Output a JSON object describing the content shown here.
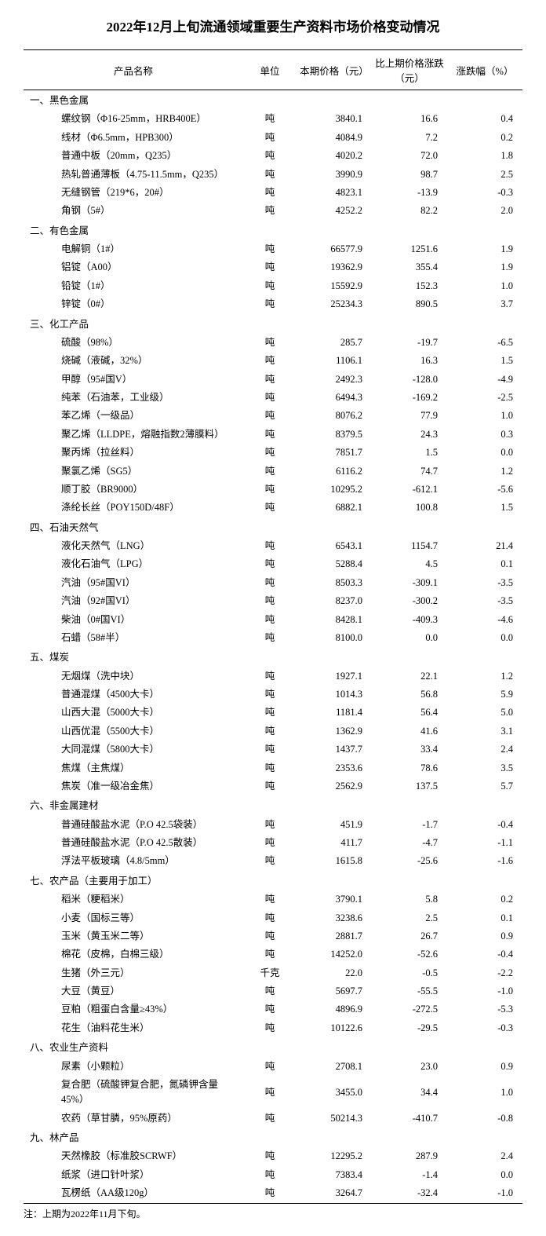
{
  "title": "2022年12月上旬流通领域重要生产资料市场价格变动情况",
  "headers": {
    "name": "产品名称",
    "unit": "单位",
    "price": "本期价格（元）",
    "change": "比上期价格涨跌（元）",
    "pct": "涨跌幅（%）"
  },
  "categories": [
    {
      "label": "一、黑色金属",
      "rows": [
        {
          "name": "螺纹钢（Φ16-25mm，HRB400E）",
          "unit": "吨",
          "price": "3840.1",
          "change": "16.6",
          "pct": "0.4"
        },
        {
          "name": "线材（Φ6.5mm，HPB300）",
          "unit": "吨",
          "price": "4084.9",
          "change": "7.2",
          "pct": "0.2"
        },
        {
          "name": "普通中板（20mm，Q235）",
          "unit": "吨",
          "price": "4020.2",
          "change": "72.0",
          "pct": "1.8"
        },
        {
          "name": "热轧普通薄板（4.75-11.5mm，Q235）",
          "unit": "吨",
          "price": "3990.9",
          "change": "98.7",
          "pct": "2.5"
        },
        {
          "name": "无缝钢管（219*6，20#）",
          "unit": "吨",
          "price": "4823.1",
          "change": "-13.9",
          "pct": "-0.3"
        },
        {
          "name": "角钢（5#）",
          "unit": "吨",
          "price": "4252.2",
          "change": "82.2",
          "pct": "2.0"
        }
      ]
    },
    {
      "label": "二、有色金属",
      "rows": [
        {
          "name": "电解铜（1#）",
          "unit": "吨",
          "price": "66577.9",
          "change": "1251.6",
          "pct": "1.9"
        },
        {
          "name": "铝锭（A00）",
          "unit": "吨",
          "price": "19362.9",
          "change": "355.4",
          "pct": "1.9"
        },
        {
          "name": "铅锭（1#）",
          "unit": "吨",
          "price": "15592.9",
          "change": "152.3",
          "pct": "1.0"
        },
        {
          "name": "锌锭（0#）",
          "unit": "吨",
          "price": "25234.3",
          "change": "890.5",
          "pct": "3.7"
        }
      ]
    },
    {
      "label": "三、化工产品",
      "rows": [
        {
          "name": "硫酸（98%）",
          "unit": "吨",
          "price": "285.7",
          "change": "-19.7",
          "pct": "-6.5"
        },
        {
          "name": "烧碱（液碱，32%）",
          "unit": "吨",
          "price": "1106.1",
          "change": "16.3",
          "pct": "1.5"
        },
        {
          "name": "甲醇（95#国V）",
          "unit": "吨",
          "price": "2492.3",
          "change": "-128.0",
          "pct": "-4.9"
        },
        {
          "name": "纯苯（石油苯，工业级）",
          "unit": "吨",
          "price": "6494.3",
          "change": "-169.2",
          "pct": "-2.5"
        },
        {
          "name": "苯乙烯（一级品）",
          "unit": "吨",
          "price": "8076.2",
          "change": "77.9",
          "pct": "1.0"
        },
        {
          "name": "聚乙烯（LLDPE，熔融指数2薄膜料）",
          "unit": "吨",
          "price": "8379.5",
          "change": "24.3",
          "pct": "0.3"
        },
        {
          "name": "聚丙烯（拉丝料）",
          "unit": "吨",
          "price": "7851.7",
          "change": "1.5",
          "pct": "0.0"
        },
        {
          "name": "聚氯乙烯（SG5）",
          "unit": "吨",
          "price": "6116.2",
          "change": "74.7",
          "pct": "1.2"
        },
        {
          "name": "顺丁胶（BR9000）",
          "unit": "吨",
          "price": "10295.2",
          "change": "-612.1",
          "pct": "-5.6"
        },
        {
          "name": "涤纶长丝（POY150D/48F）",
          "unit": "吨",
          "price": "6882.1",
          "change": "100.8",
          "pct": "1.5"
        }
      ]
    },
    {
      "label": "四、石油天然气",
      "rows": [
        {
          "name": "液化天然气（LNG）",
          "unit": "吨",
          "price": "6543.1",
          "change": "1154.7",
          "pct": "21.4"
        },
        {
          "name": "液化石油气（LPG）",
          "unit": "吨",
          "price": "5288.4",
          "change": "4.5",
          "pct": "0.1"
        },
        {
          "name": "汽油（95#国VI）",
          "unit": "吨",
          "price": "8503.3",
          "change": "-309.1",
          "pct": "-3.5"
        },
        {
          "name": "汽油（92#国VI）",
          "unit": "吨",
          "price": "8237.0",
          "change": "-300.2",
          "pct": "-3.5"
        },
        {
          "name": "柴油（0#国VI）",
          "unit": "吨",
          "price": "8428.1",
          "change": "-409.3",
          "pct": "-4.6"
        },
        {
          "name": "石蜡（58#半）",
          "unit": "吨",
          "price": "8100.0",
          "change": "0.0",
          "pct": "0.0"
        }
      ]
    },
    {
      "label": "五、煤炭",
      "rows": [
        {
          "name": "无烟煤（洗中块）",
          "unit": "吨",
          "price": "1927.1",
          "change": "22.1",
          "pct": "1.2"
        },
        {
          "name": "普通混煤（4500大卡）",
          "unit": "吨",
          "price": "1014.3",
          "change": "56.8",
          "pct": "5.9"
        },
        {
          "name": "山西大混（5000大卡）",
          "unit": "吨",
          "price": "1181.4",
          "change": "56.4",
          "pct": "5.0"
        },
        {
          "name": "山西优混（5500大卡）",
          "unit": "吨",
          "price": "1362.9",
          "change": "41.6",
          "pct": "3.1"
        },
        {
          "name": "大同混煤（5800大卡）",
          "unit": "吨",
          "price": "1437.7",
          "change": "33.4",
          "pct": "2.4"
        },
        {
          "name": "焦煤（主焦煤）",
          "unit": "吨",
          "price": "2353.6",
          "change": "78.6",
          "pct": "3.5"
        },
        {
          "name": "焦炭（准一级冶金焦）",
          "unit": "吨",
          "price": "2562.9",
          "change": "137.5",
          "pct": "5.7"
        }
      ]
    },
    {
      "label": "六、非金属建材",
      "rows": [
        {
          "name": "普通硅酸盐水泥（P.O 42.5袋装）",
          "unit": "吨",
          "price": "451.9",
          "change": "-1.7",
          "pct": "-0.4"
        },
        {
          "name": "普通硅酸盐水泥（P.O 42.5散装）",
          "unit": "吨",
          "price": "411.7",
          "change": "-4.7",
          "pct": "-1.1"
        },
        {
          "name": "浮法平板玻璃（4.8/5mm）",
          "unit": "吨",
          "price": "1615.8",
          "change": "-25.6",
          "pct": "-1.6"
        }
      ]
    },
    {
      "label": "七、农产品（主要用于加工）",
      "rows": [
        {
          "name": "稻米（粳稻米）",
          "unit": "吨",
          "price": "3790.1",
          "change": "5.8",
          "pct": "0.2"
        },
        {
          "name": "小麦（国标三等）",
          "unit": "吨",
          "price": "3238.6",
          "change": "2.5",
          "pct": "0.1"
        },
        {
          "name": "玉米（黄玉米二等）",
          "unit": "吨",
          "price": "2881.7",
          "change": "26.7",
          "pct": "0.9"
        },
        {
          "name": "棉花（皮棉，白棉三级）",
          "unit": "吨",
          "price": "14252.0",
          "change": "-52.6",
          "pct": "-0.4"
        },
        {
          "name": "生猪（外三元）",
          "unit": "千克",
          "price": "22.0",
          "change": "-0.5",
          "pct": "-2.2"
        },
        {
          "name": "大豆（黄豆）",
          "unit": "吨",
          "price": "5697.7",
          "change": "-55.5",
          "pct": "-1.0"
        },
        {
          "name": "豆粕（粗蛋白含量≥43%）",
          "unit": "吨",
          "price": "4896.9",
          "change": "-272.5",
          "pct": "-5.3"
        },
        {
          "name": "花生（油料花生米）",
          "unit": "吨",
          "price": "10122.6",
          "change": "-29.5",
          "pct": "-0.3"
        }
      ]
    },
    {
      "label": "八、农业生产资料",
      "rows": [
        {
          "name": "尿素（小颗粒）",
          "unit": "吨",
          "price": "2708.1",
          "change": "23.0",
          "pct": "0.9"
        },
        {
          "name": "复合肥（硫酸钾复合肥，氮磷钾含量45%）",
          "unit": "吨",
          "price": "3455.0",
          "change": "34.4",
          "pct": "1.0"
        },
        {
          "name": "农药（草甘膦，95%原药）",
          "unit": "吨",
          "price": "50214.3",
          "change": "-410.7",
          "pct": "-0.8"
        }
      ]
    },
    {
      "label": "九、林产品",
      "rows": [
        {
          "name": "天然橡胶（标准胶SCRWF）",
          "unit": "吨",
          "price": "12295.2",
          "change": "287.9",
          "pct": "2.4"
        },
        {
          "name": "纸浆（进口针叶浆）",
          "unit": "吨",
          "price": "7383.4",
          "change": "-1.4",
          "pct": "0.0"
        },
        {
          "name": "瓦楞纸（AA级120g）",
          "unit": "吨",
          "price": "3264.7",
          "change": "-32.4",
          "pct": "-1.0"
        }
      ]
    }
  ],
  "footnote": "注：上期为2022年11月下旬。"
}
